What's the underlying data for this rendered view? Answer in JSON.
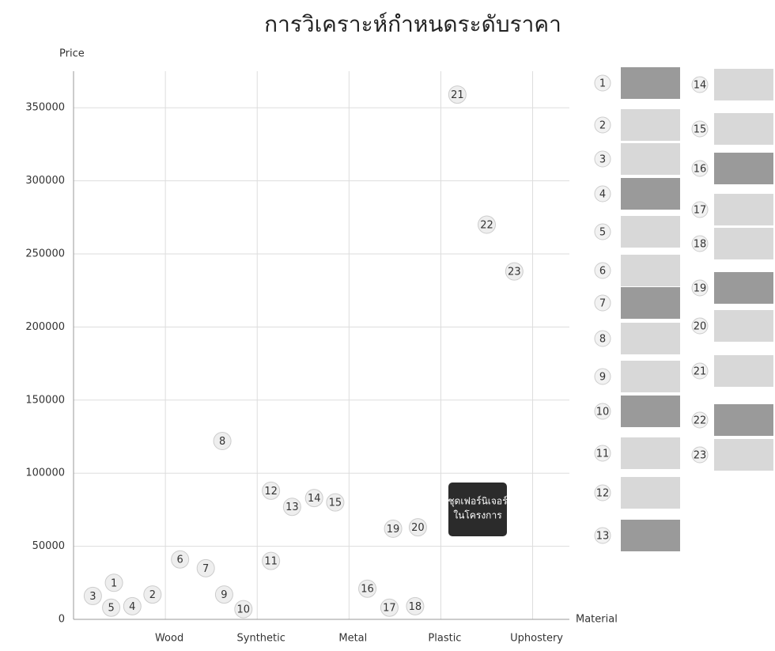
{
  "chart_data": {
    "type": "scatter",
    "title": "การวิเคราะห์กำหนดระดับราคา",
    "y_label": "Price",
    "x_label": "Material",
    "xlim": [
      0,
      5.4
    ],
    "ylim": [
      0,
      375000
    ],
    "xticks": [
      {
        "value": 1,
        "label": "Wood"
      },
      {
        "value": 2,
        "label": "Synthetic"
      },
      {
        "value": 3,
        "label": "Metal"
      },
      {
        "value": 4,
        "label": "Plastic"
      },
      {
        "value": 5,
        "label": "Uphostery"
      }
    ],
    "yticks": [
      0,
      50000,
      100000,
      150000,
      200000,
      250000,
      300000,
      350000
    ],
    "grid": true,
    "x": [
      0.44,
      0.86,
      0.21,
      0.64,
      0.41,
      1.16,
      1.44,
      1.62,
      1.64,
      1.85,
      2.15,
      2.15,
      2.38,
      2.62,
      2.85,
      3.2,
      3.44,
      3.72,
      3.48,
      3.75,
      4.18,
      4.5,
      4.8
    ],
    "series": [
      {
        "color": "#eeeeee",
        "values": [
          25000,
          17000,
          16000,
          9000,
          8000,
          41000,
          35000,
          122000,
          17000,
          7000,
          40000,
          88000,
          77000,
          83000,
          80000,
          21000,
          8000,
          9000,
          62000,
          63000,
          359000,
          270000,
          238000
        ],
        "labels": [
          "1",
          "2",
          "3",
          "4",
          "5",
          "6",
          "7",
          "8",
          "9",
          "10",
          "11",
          "12",
          "13",
          "14",
          "15",
          "16",
          "17",
          "18",
          "19",
          "20",
          "21",
          "22",
          "23"
        ]
      }
    ],
    "annotation": [
      "ชุดเฟอร์นิเจอร์",
      "ในโครงการ"
    ]
  }
}
